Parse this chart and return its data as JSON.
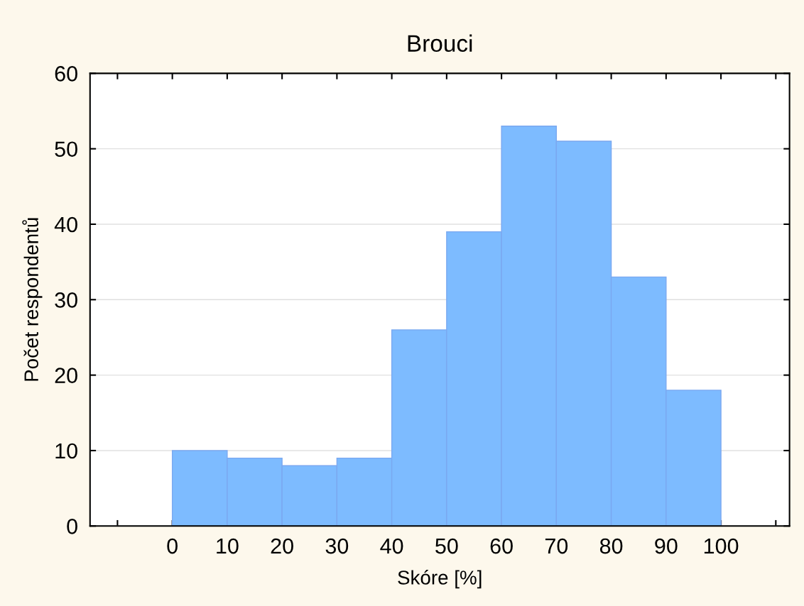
{
  "chart_data": {
    "type": "histogram",
    "title": "Brouci",
    "xlabel": "Skóre [%]",
    "ylabel": "Počet respondentů",
    "bins": [
      0,
      10,
      20,
      30,
      40,
      50,
      60,
      70,
      80,
      90,
      100
    ],
    "values": [
      10,
      9,
      8,
      9,
      26,
      39,
      53,
      51,
      33,
      18
    ],
    "color": "#7dbbff",
    "xlim": [
      -15,
      112.5
    ],
    "xticks": [
      {
        "value": -10,
        "label": null
      },
      0,
      10,
      20,
      30,
      40,
      50,
      60,
      70,
      80,
      90,
      100,
      {
        "value": 110,
        "label": null
      }
    ],
    "ylim": [
      0,
      60
    ],
    "yticks": [
      0,
      10,
      20,
      30,
      40,
      50,
      60
    ],
    "grid": "y"
  }
}
